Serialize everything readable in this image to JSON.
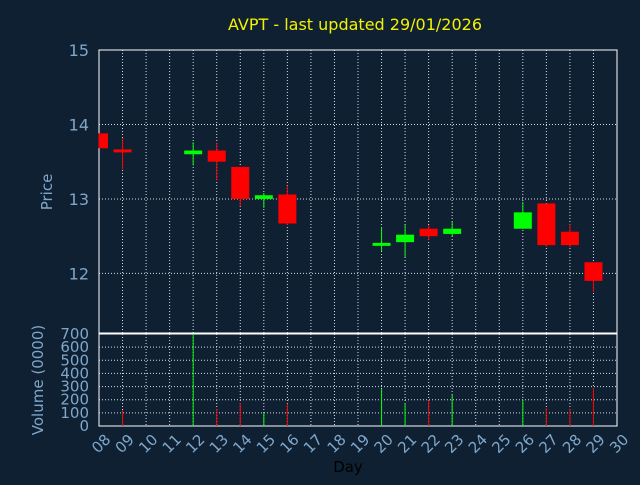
{
  "chart_data": {
    "type": "candlestick",
    "title": "AVPT - last updated 29/01/2026",
    "colors": {
      "background": "#0f2033",
      "title": "#f2f200",
      "axis_text": "#7fa7c9",
      "xlabel": "#000000",
      "up": "#00ff00",
      "down": "#ff0000",
      "grid": "#ffffff"
    },
    "xlabel": "Day",
    "x_ticks": [
      "08",
      "09",
      "10",
      "11",
      "12",
      "13",
      "14",
      "15",
      "16",
      "17",
      "18",
      "19",
      "20",
      "21",
      "22",
      "23",
      "24",
      "25",
      "26",
      "27",
      "28",
      "29",
      "30"
    ],
    "price_panel": {
      "ylabel": "Price",
      "ylim": [
        11.2,
        15
      ],
      "y_ticks": [
        "12",
        "13",
        "14",
        "15"
      ],
      "grid": true
    },
    "volume_panel": {
      "ylabel": "Volume (0000)",
      "ylim": [
        0,
        700
      ],
      "y_ticks": [
        "0",
        "100",
        "200",
        "300",
        "400",
        "500",
        "600",
        "700"
      ],
      "grid": true
    },
    "candles": [
      {
        "day": 8,
        "open": 13.88,
        "high": 13.88,
        "low": 13.68,
        "close": 13.68,
        "volume": 0
      },
      {
        "day": 9,
        "open": 13.66,
        "high": 13.82,
        "low": 13.4,
        "close": 13.63,
        "volume": 120
      },
      {
        "day": 12,
        "open": 13.6,
        "high": 13.76,
        "low": 13.45,
        "close": 13.65,
        "volume": 700
      },
      {
        "day": 13,
        "open": 13.65,
        "high": 13.75,
        "low": 13.25,
        "close": 13.5,
        "volume": 130
      },
      {
        "day": 14,
        "open": 13.43,
        "high": 13.43,
        "low": 12.9,
        "close": 13.0,
        "volume": 175
      },
      {
        "day": 15,
        "open": 13.0,
        "high": 13.08,
        "low": 12.88,
        "close": 13.05,
        "volume": 100
      },
      {
        "day": 16,
        "open": 13.06,
        "high": 13.18,
        "low": 12.65,
        "close": 12.67,
        "volume": 170
      },
      {
        "day": 20,
        "open": 12.38,
        "high": 12.62,
        "low": 12.3,
        "close": 12.4,
        "volume": 280
      },
      {
        "day": 21,
        "open": 12.42,
        "high": 12.65,
        "low": 12.22,
        "close": 12.52,
        "volume": 170
      },
      {
        "day": 22,
        "open": 12.6,
        "high": 12.65,
        "low": 12.45,
        "close": 12.5,
        "volume": 195
      },
      {
        "day": 23,
        "open": 12.53,
        "high": 12.7,
        "low": 12.5,
        "close": 12.6,
        "volume": 240
      },
      {
        "day": 26,
        "open": 12.6,
        "high": 12.96,
        "low": 12.6,
        "close": 12.82,
        "volume": 200
      },
      {
        "day": 27,
        "open": 12.94,
        "high": 12.94,
        "low": 12.36,
        "close": 12.38,
        "volume": 135
      },
      {
        "day": 28,
        "open": 12.56,
        "high": 12.66,
        "low": 12.35,
        "close": 12.38,
        "volume": 130
      },
      {
        "day": 29,
        "open": 12.15,
        "high": 12.15,
        "low": 11.75,
        "close": 11.9,
        "volume": 290
      }
    ]
  }
}
